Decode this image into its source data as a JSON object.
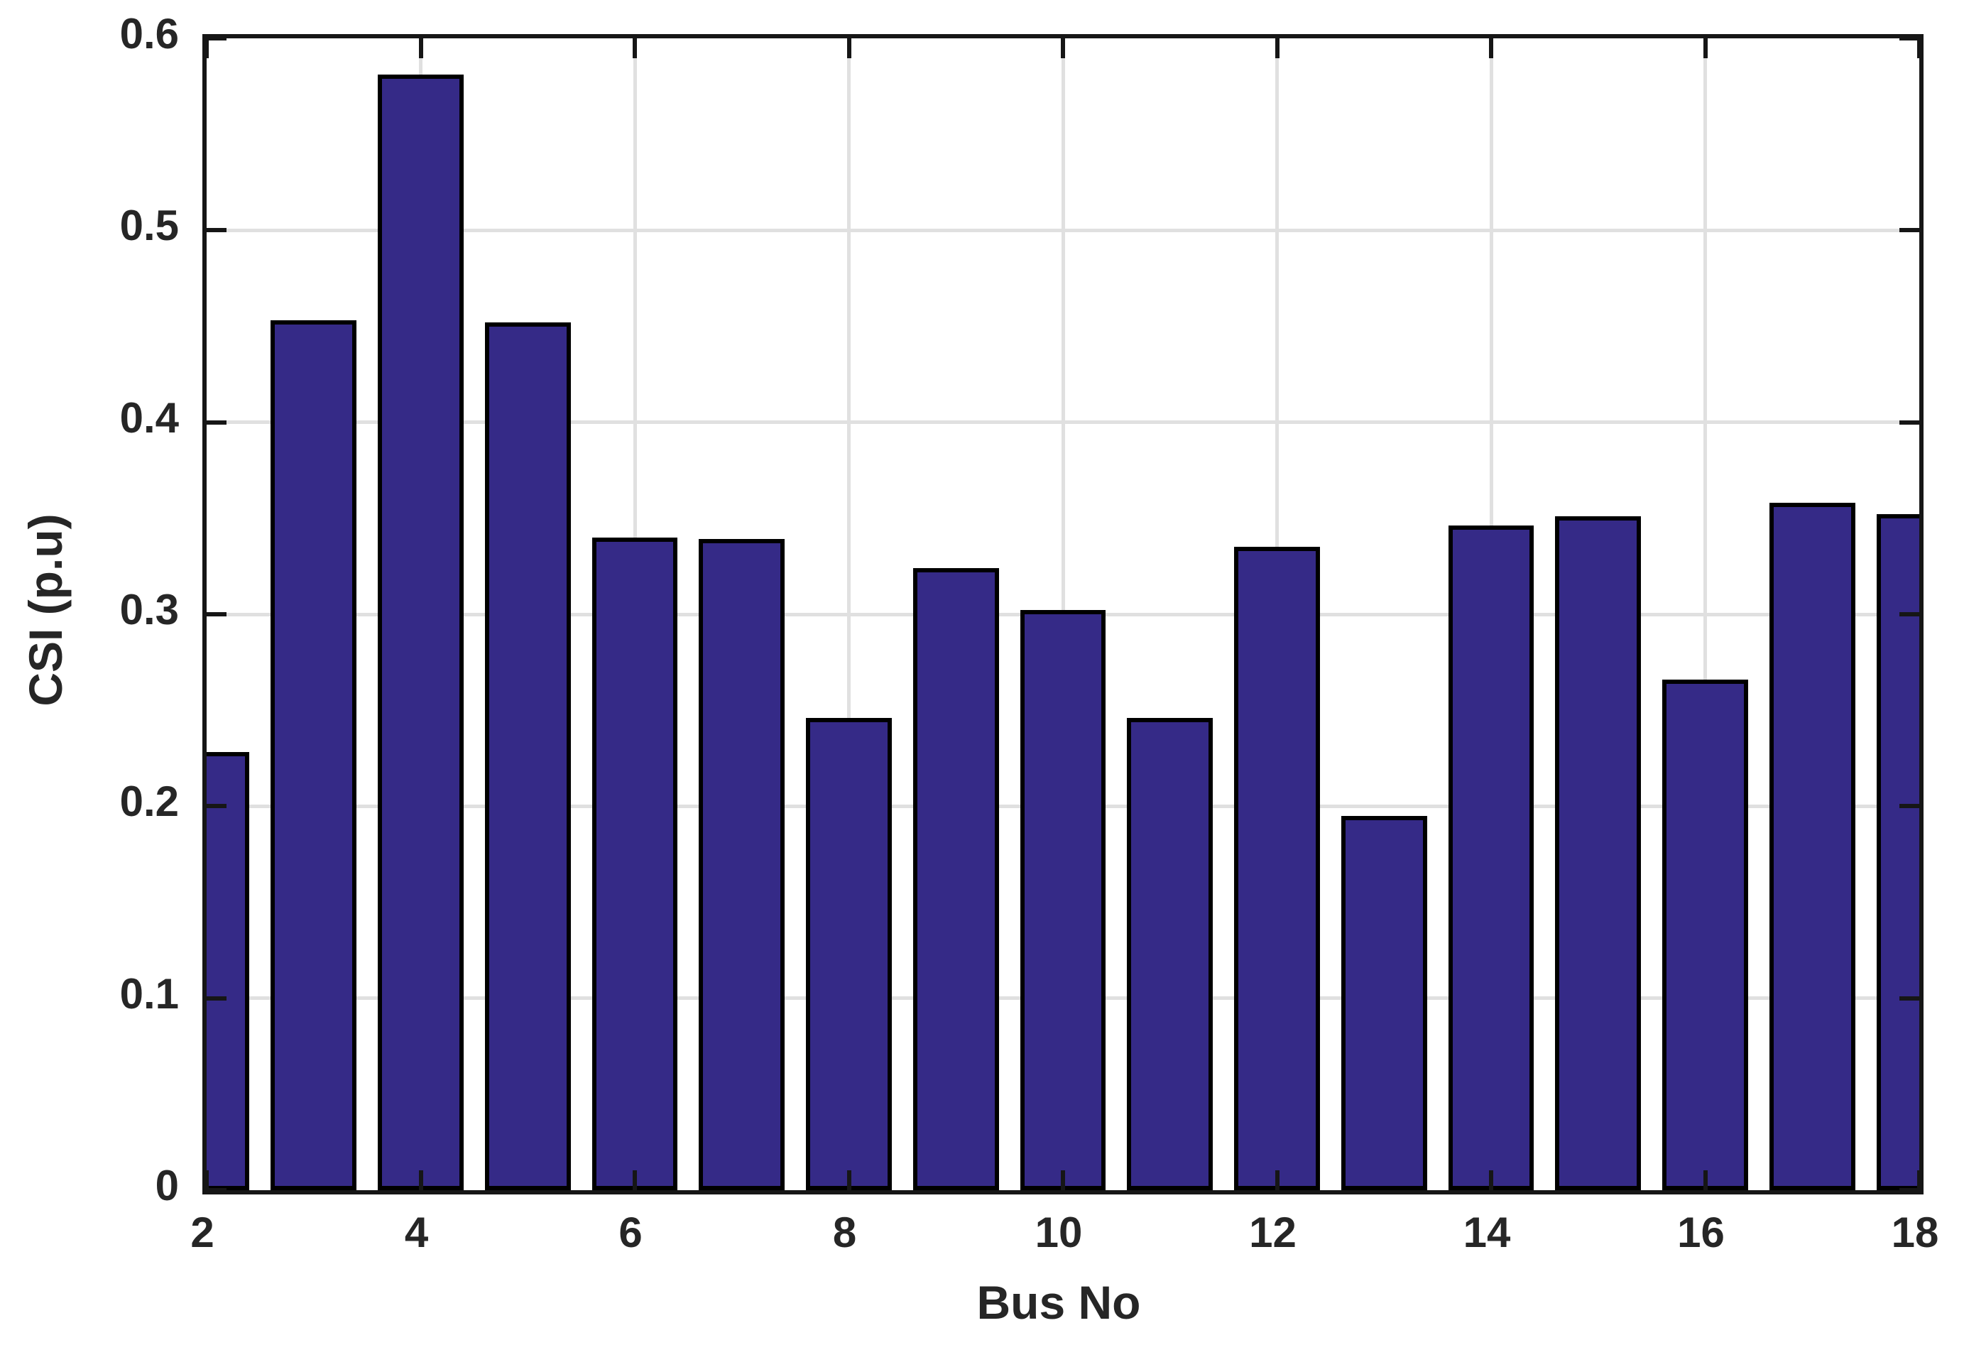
{
  "chart_data": {
    "type": "bar",
    "title": "",
    "xlabel": "Bus No",
    "ylabel": "CSI (p.u)",
    "x": [
      2,
      3,
      4,
      5,
      6,
      7,
      8,
      9,
      10,
      11,
      12,
      13,
      14,
      15,
      16,
      17,
      18
    ],
    "values": [
      0.227,
      0.452,
      0.58,
      0.451,
      0.339,
      0.338,
      0.245,
      0.323,
      0.301,
      0.245,
      0.334,
      0.194,
      0.345,
      0.35,
      0.265,
      0.357,
      0.351
    ],
    "xlim": [
      2,
      18
    ],
    "ylim": [
      0,
      0.6
    ],
    "x_ticks": [
      2,
      4,
      6,
      8,
      10,
      12,
      14,
      16,
      18
    ],
    "x_tick_labels": [
      "2",
      "4",
      "6",
      "8",
      "10",
      "12",
      "14",
      "16",
      "18"
    ],
    "y_ticks": [
      0,
      0.1,
      0.2,
      0.3,
      0.4,
      0.5,
      0.6
    ],
    "y_tick_labels": [
      "0",
      "0.1",
      "0.2",
      "0.3",
      "0.4",
      "0.5",
      "0.6"
    ],
    "grid": true,
    "legend": null,
    "bar_width_fraction": 0.8,
    "colors": {
      "bar_fill": "#352a87",
      "bar_edge": "#000000",
      "grid": "#e0e0e0",
      "axis": "#161616",
      "text": "#262626",
      "background": "#ffffff"
    }
  }
}
